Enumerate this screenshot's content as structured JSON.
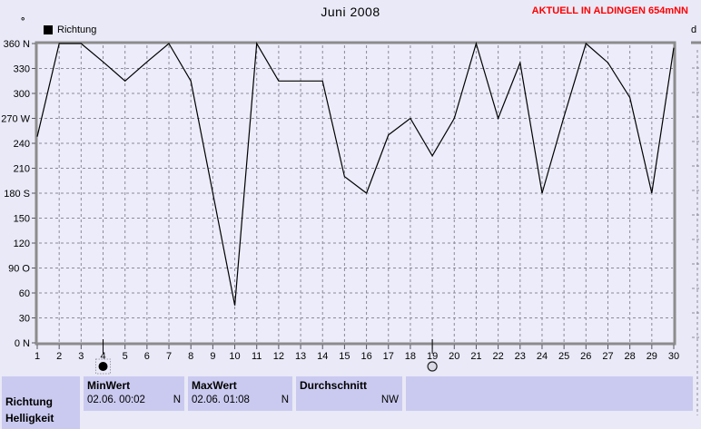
{
  "page": {
    "title": "Juni 2008",
    "status_right": "AKTUELL IN ALDINGEN 654mNN",
    "axis_unit": "°",
    "next_panel_label": "d"
  },
  "legend": {
    "label": "Richtung"
  },
  "chart_data": {
    "type": "line",
    "title": "Juni 2008",
    "series": [
      {
        "name": "Richtung",
        "values": [
          248,
          360,
          360,
          338,
          315,
          338,
          360,
          315,
          180,
          45,
          360,
          315,
          315,
          315,
          200,
          180,
          250,
          270,
          225,
          270,
          360,
          270,
          337,
          180,
          272,
          360,
          337,
          295,
          180,
          355
        ]
      }
    ],
    "x": [
      1,
      2,
      3,
      4,
      5,
      6,
      7,
      8,
      9,
      10,
      11,
      12,
      13,
      14,
      15,
      16,
      17,
      18,
      19,
      20,
      21,
      22,
      23,
      24,
      25,
      26,
      27,
      28,
      29,
      30
    ],
    "xlabel": "",
    "ylabel": "",
    "ylim": [
      0,
      360
    ],
    "ytick_step": 30,
    "ytick_labels_bottom_up": [
      "0 N",
      "30",
      "60",
      "90 O",
      "120",
      "150",
      "180 S",
      "210",
      "240",
      "270 W",
      "300",
      "330",
      "360 N"
    ],
    "grid": true,
    "legend_position": "top-left",
    "line_color": "#000000",
    "cursor_markers": [
      {
        "x": 4,
        "style": "filled"
      },
      {
        "x": 19,
        "style": "open"
      }
    ]
  },
  "table": {
    "row_label": "Richtung",
    "row2_label_clipped": "Helligkeit",
    "columns": [
      {
        "header": "MinWert",
        "value": "02.06.  00:02",
        "unit": "N"
      },
      {
        "header": "MaxWert",
        "value": "02.06.  01:08",
        "unit": "N"
      },
      {
        "header": "Durchschnitt",
        "value": "NW",
        "unit": ""
      }
    ]
  },
  "colors": {
    "page_bg": "#e9e9f7",
    "plot_bg": "#ececfa",
    "border_gray": "#8c8c8c",
    "grid_gray": "#8a8a9a",
    "table_cell_bg": "#cacaf0",
    "status_red": "#ff0000",
    "line_black": "#000000"
  }
}
